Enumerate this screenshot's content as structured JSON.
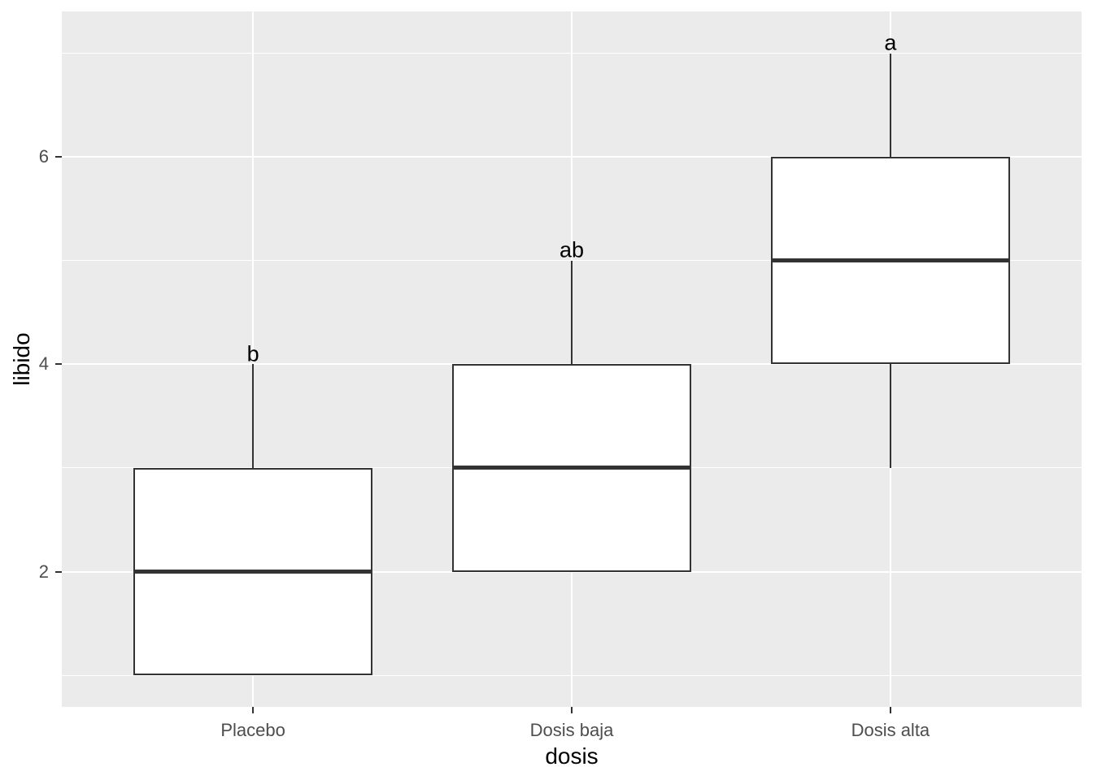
{
  "chart_data": {
    "type": "boxplot",
    "title": "",
    "xlabel": "dosis",
    "ylabel": "libido",
    "categories": [
      "Placebo",
      "Dosis baja",
      "Dosis alta"
    ],
    "boxes": [
      {
        "category": "Placebo",
        "min": 1,
        "q1": 1,
        "median": 2,
        "q3": 3,
        "max": 4,
        "sig_label": "b",
        "sig_y": 4.1
      },
      {
        "category": "Dosis baja",
        "min": 2,
        "q1": 2,
        "median": 3,
        "q3": 4,
        "max": 5,
        "sig_label": "ab",
        "sig_y": 5.1
      },
      {
        "category": "Dosis alta",
        "min": 3,
        "q1": 4,
        "median": 5,
        "q3": 6,
        "max": 7,
        "sig_label": "a",
        "sig_y": 7.1
      }
    ],
    "yticks": [
      {
        "value": 2,
        "label": "2"
      },
      {
        "value": 4,
        "label": "4"
      },
      {
        "value": 6,
        "label": "6"
      }
    ],
    "grid_major_y": [
      2,
      4,
      6
    ],
    "grid_minor_y": [
      1,
      3,
      5,
      7
    ],
    "ylim": [
      0.695,
      7.405
    ],
    "xlim": [
      0.4,
      3.6
    ],
    "box_width": 0.75,
    "grid": "on",
    "legend_position": "none",
    "colors": {
      "panel_bg": "#EBEBEB",
      "grid": "#FFFFFF",
      "box_border": "#333333",
      "box_fill": "#FFFFFF",
      "median": "#333333",
      "whisker": "#333333",
      "tick_mark": "#333333",
      "tick_text": "#4D4D4D",
      "axis_title_text": "#000000",
      "annotation_text": "#000000",
      "figure_bg": "#FFFFFF"
    }
  }
}
